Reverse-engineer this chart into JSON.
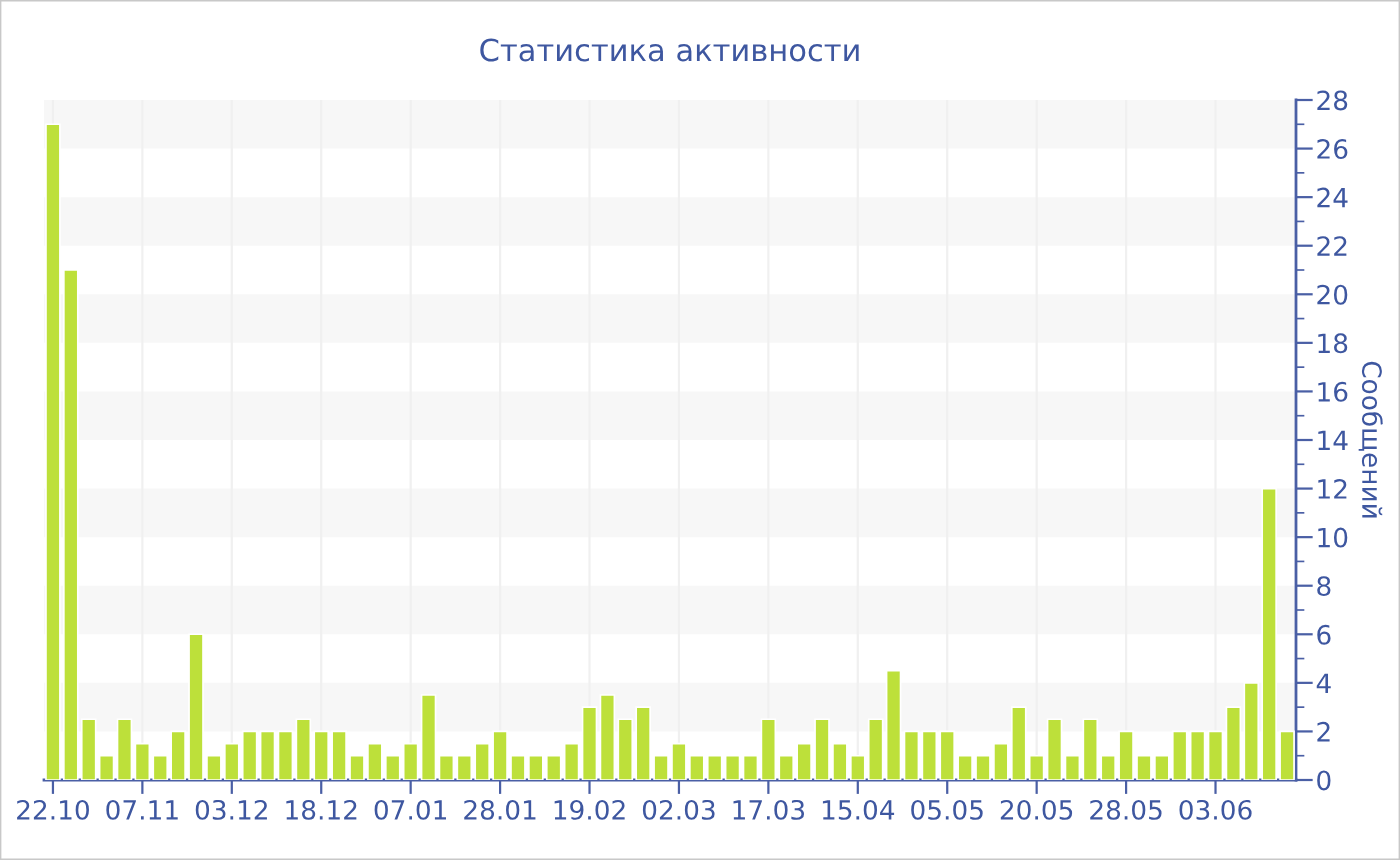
{
  "chart_data": {
    "type": "bar",
    "title": "Статистика активности",
    "ylabel": "Сообщений",
    "categories": [
      "22.10",
      null,
      null,
      null,
      null,
      "07.11",
      null,
      null,
      null,
      null,
      "03.12",
      null,
      null,
      null,
      null,
      "18.12",
      null,
      null,
      null,
      null,
      "07.01",
      null,
      null,
      null,
      null,
      "28.01",
      null,
      null,
      null,
      null,
      "19.02",
      null,
      null,
      null,
      null,
      "02.03",
      null,
      null,
      null,
      null,
      "17.03",
      null,
      null,
      null,
      null,
      "15.04",
      null,
      null,
      null,
      null,
      "05.05",
      null,
      null,
      null,
      null,
      "20.05",
      null,
      null,
      null,
      null,
      "28.05",
      null,
      null,
      null,
      null,
      "03.06",
      null,
      null,
      null,
      null
    ],
    "values": [
      27,
      21,
      2.5,
      1,
      2.5,
      1.5,
      1,
      2,
      6,
      1,
      1.5,
      2,
      2,
      2,
      2.5,
      2,
      2,
      1,
      1.5,
      1,
      1.5,
      3.5,
      1,
      1,
      1.5,
      2,
      1,
      1,
      1,
      1.5,
      3,
      3.5,
      2.5,
      3,
      1,
      1.5,
      1,
      1,
      1,
      1,
      2.5,
      1,
      1.5,
      2.5,
      1.5,
      1,
      2.5,
      4.5,
      2,
      2,
      2,
      1,
      1,
      1.5,
      3,
      1,
      2.5,
      1,
      2.5,
      1,
      2,
      1,
      1,
      2,
      2,
      2,
      3,
      4,
      12,
      2
    ],
    "color": "#bde03a",
    "ylim": [
      0,
      28
    ],
    "yticks": [
      0,
      2,
      4,
      6,
      8,
      10,
      12,
      14,
      16,
      18,
      20,
      22,
      24,
      26,
      28
    ],
    "grid": "x",
    "bands": [
      {
        "axis": "y",
        "from": 2,
        "to": 4,
        "color": "#f7f7f7"
      },
      {
        "axis": "y",
        "from": 6,
        "to": 8,
        "color": "#f7f7f7"
      },
      {
        "axis": "y",
        "from": 10,
        "to": 12,
        "color": "#f7f7f7"
      },
      {
        "axis": "y",
        "from": 14,
        "to": 16,
        "color": "#f7f7f7"
      },
      {
        "axis": "y",
        "from": 18,
        "to": 20,
        "color": "#f7f7f7"
      },
      {
        "axis": "y",
        "from": 22,
        "to": 24,
        "color": "#f7f7f7"
      },
      {
        "axis": "y",
        "from": 26,
        "to": 28,
        "color": "#f7f7f7"
      }
    ]
  }
}
